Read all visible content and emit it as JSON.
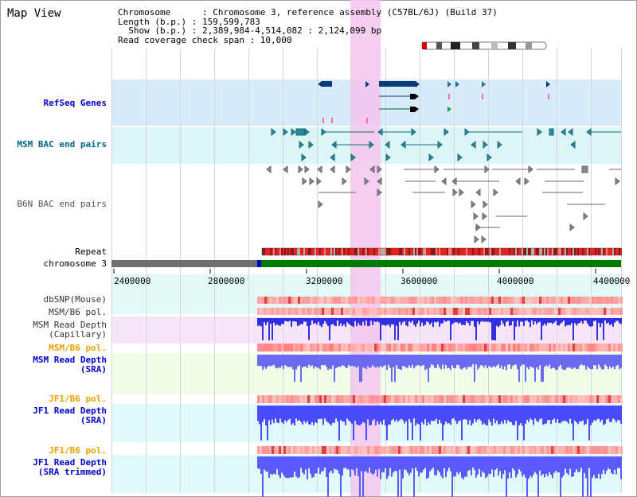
{
  "view_title": "Map View",
  "info": {
    "chromosome": "Chromosome      : Chromosome 3, reference assembly (C57BL/6J) (Build 37)",
    "length": "Length (b.p.) : 159,599,783",
    "show": "  Show (b.p.) : 2,389,984-4,514,082 : 2,124,099 bp",
    "span": "Read coverage check span : 10,000"
  },
  "tracks": {
    "refseq": "RefSeq Genes",
    "msm_bac": "MSM BAC end pairs",
    "b6n_bac": "B6N BAC end pairs",
    "repeat": "Repeat",
    "chromosome": "chromosome 3",
    "dbsnp": "dbSNP(Mouse)",
    "msm_b6_pol_1": "MSM/B6 pol.",
    "msm_read_depth_cap_1": "MSM Read Depth",
    "msm_read_depth_cap_2": "(Capillary)",
    "msm_b6_pol_2": "MSM/B6 pol.",
    "msm_read_depth_sra_1": "MSM Read Depth",
    "msm_read_depth_sra_2": "(SRA)",
    "jf1_b6_pol_1": "JF1/B6 pol.",
    "jf1_read_depth_sra_1": "JF1 Read Depth",
    "jf1_read_depth_sra_2": "(SRA)",
    "jf1_b6_pol_2": "JF1/B6 pol.",
    "jf1_read_depth_trim_1": "JF1 Read Depth",
    "jf1_read_depth_trim_2": "(SRA trimmed)"
  },
  "axis_ticks": [
    "2400000",
    "2800000",
    "3200000",
    "3600000",
    "4000000",
    "4400000"
  ],
  "colors": {
    "refseq_bg": "#d7ecfa",
    "msm_bac_bg": "#dcf5f7",
    "highlight": "#f5c6ef",
    "label_blue": "#0000cc",
    "label_orange": "#f0a000",
    "label_teal": "#006a88",
    "chrom_gray": "#6e6e6e",
    "chrom_green": "#007a00",
    "depth_blue": "#4a4aff"
  }
}
